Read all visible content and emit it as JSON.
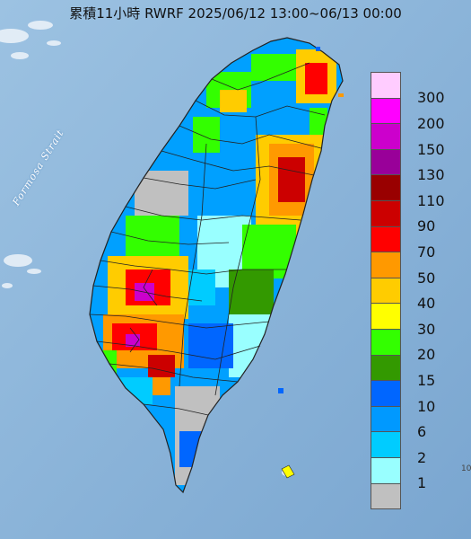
{
  "title": "累積11小時 RWRF 2025/06/12 13:00~06/13 00:00",
  "map": {
    "strait_label": "Formosa Strait",
    "island_label": "10",
    "colors": {
      "sea": "#8fb7dc",
      "land_background": "#b4c8dc",
      "border": "#222222"
    }
  },
  "legend": {
    "levels": [
      {
        "label": "300",
        "color": "#ffccff"
      },
      {
        "label": "200",
        "color": "#ff00ff"
      },
      {
        "label": "150",
        "color": "#cc00cc"
      },
      {
        "label": "130",
        "color": "#990099"
      },
      {
        "label": "110",
        "color": "#990000"
      },
      {
        "label": "90",
        "color": "#cc0000"
      },
      {
        "label": "70",
        "color": "#ff0000"
      },
      {
        "label": "50",
        "color": "#ff9900"
      },
      {
        "label": "40",
        "color": "#ffcc00"
      },
      {
        "label": "30",
        "color": "#ffff00"
      },
      {
        "label": "20",
        "color": "#33ff00"
      },
      {
        "label": "15",
        "color": "#339900"
      },
      {
        "label": "10",
        "color": "#0066ff"
      },
      {
        "label": "6",
        "color": "#0099ff"
      },
      {
        "label": "2",
        "color": "#00ccff"
      },
      {
        "label": "1",
        "color": "#99ffff"
      },
      {
        "label": "",
        "color": "#c0c0c0"
      }
    ]
  }
}
